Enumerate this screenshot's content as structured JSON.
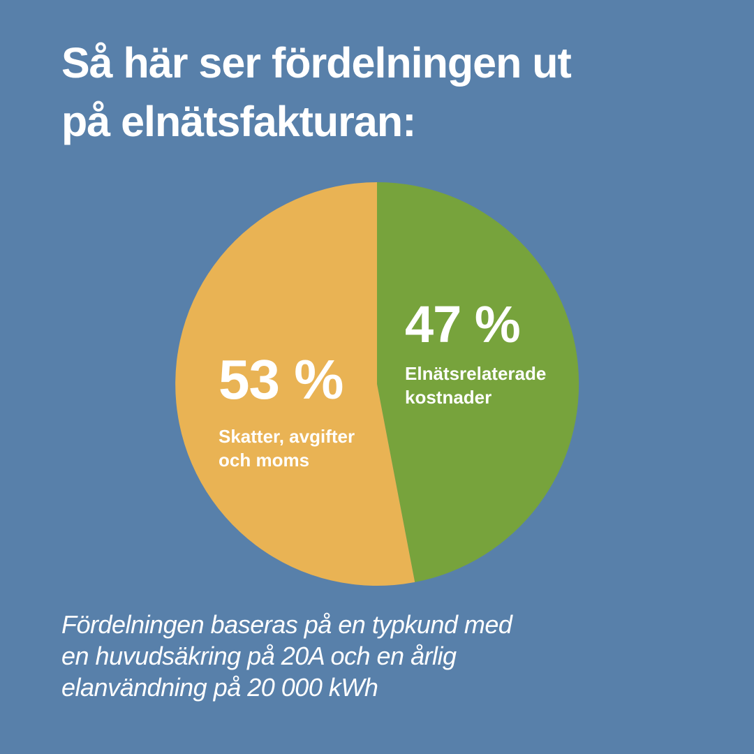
{
  "colors": {
    "background": "#5880aa",
    "text": "#ffffff",
    "slice_green": "#77a33c",
    "slice_yellow": "#e9b354"
  },
  "title": {
    "lines": [
      "Så här ser fördelningen ut",
      "på elnätsfakturan:"
    ]
  },
  "chart_data": {
    "type": "pie",
    "title": "Så här ser fördelningen ut på elnätsfakturan:",
    "categories": [
      "Elnätsrelaterade kostnader",
      "Skatter, avgifter och moms"
    ],
    "values": [
      47,
      53
    ],
    "unit": "%",
    "start_angle_deg": 0,
    "direction": "clockwise",
    "legend": "none (labels placed inside slices)",
    "slices": [
      {
        "label": "Elnätsrelaterade kostnader",
        "label_lines": [
          "Elnätsrelaterade",
          "kostnader"
        ],
        "value": 47,
        "value_label": "47 %",
        "color": "#77a33c"
      },
      {
        "label": "Skatter, avgifter och moms",
        "label_lines": [
          "Skatter, avgifter",
          "och moms"
        ],
        "value": 53,
        "value_label": "53 %",
        "color": "#e9b354"
      }
    ]
  },
  "footnote": {
    "lines": [
      "Fördelningen baseras på en typkund med",
      "en huvudsäkring på 20A och en årlig",
      "elanvändning på 20 000 kWh"
    ]
  }
}
